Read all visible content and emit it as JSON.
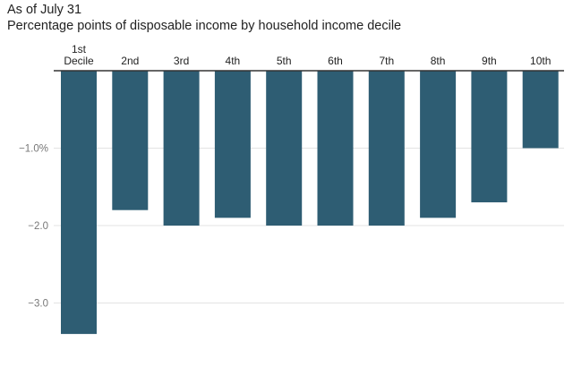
{
  "chart_data": {
    "type": "bar",
    "title": "As of July 31",
    "subtitle": "Percentage points of disposable income by household income decile",
    "categories": [
      [
        "1st",
        "Decile"
      ],
      [
        "2nd"
      ],
      [
        "3rd"
      ],
      [
        "4th"
      ],
      [
        "5th"
      ],
      [
        "6th"
      ],
      [
        "7th"
      ],
      [
        "8th"
      ],
      [
        "9th"
      ],
      [
        "10th"
      ]
    ],
    "values": [
      -3.4,
      -1.8,
      -2.0,
      -1.9,
      -2.0,
      -2.0,
      -2.0,
      -1.9,
      -1.7,
      -1.0
    ],
    "ylim": [
      -3.4,
      0
    ],
    "yticks": [
      -1,
      -2,
      -3
    ],
    "ytick_labels": [
      "−1.0%",
      "−2.0",
      "−3.0"
    ],
    "grid": true,
    "bar_color": "#2e5d73",
    "grid_color": "#e3e3e3",
    "axis_color": "#333333"
  }
}
